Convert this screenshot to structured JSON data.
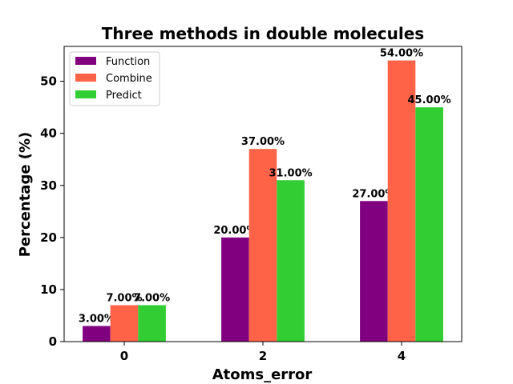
{
  "chart_data": {
    "type": "bar",
    "title": "Three methods in double molecules",
    "xlabel": "Atoms_error",
    "ylabel": "Percentage (%)",
    "categories": [
      "0",
      "2",
      "4"
    ],
    "series": [
      {
        "name": "Function",
        "color": "#800080",
        "values": [
          3,
          20,
          27
        ],
        "labels": [
          "3.00%",
          "20.00%",
          "27.00%"
        ]
      },
      {
        "name": "Combine",
        "color": "#FF6347",
        "values": [
          7,
          37,
          54
        ],
        "labels": [
          "7.00%",
          "37.00%",
          "54.00%"
        ]
      },
      {
        "name": "Predict",
        "color": "#32CD32",
        "values": [
          7,
          31,
          45
        ],
        "labels": [
          "7.00%",
          "31.00%",
          "45.00%"
        ]
      }
    ],
    "ylim": [
      0,
      56.7
    ],
    "yticks": [
      0,
      10,
      20,
      30,
      40,
      50
    ],
    "legend": "upper left",
    "grid": false
  }
}
